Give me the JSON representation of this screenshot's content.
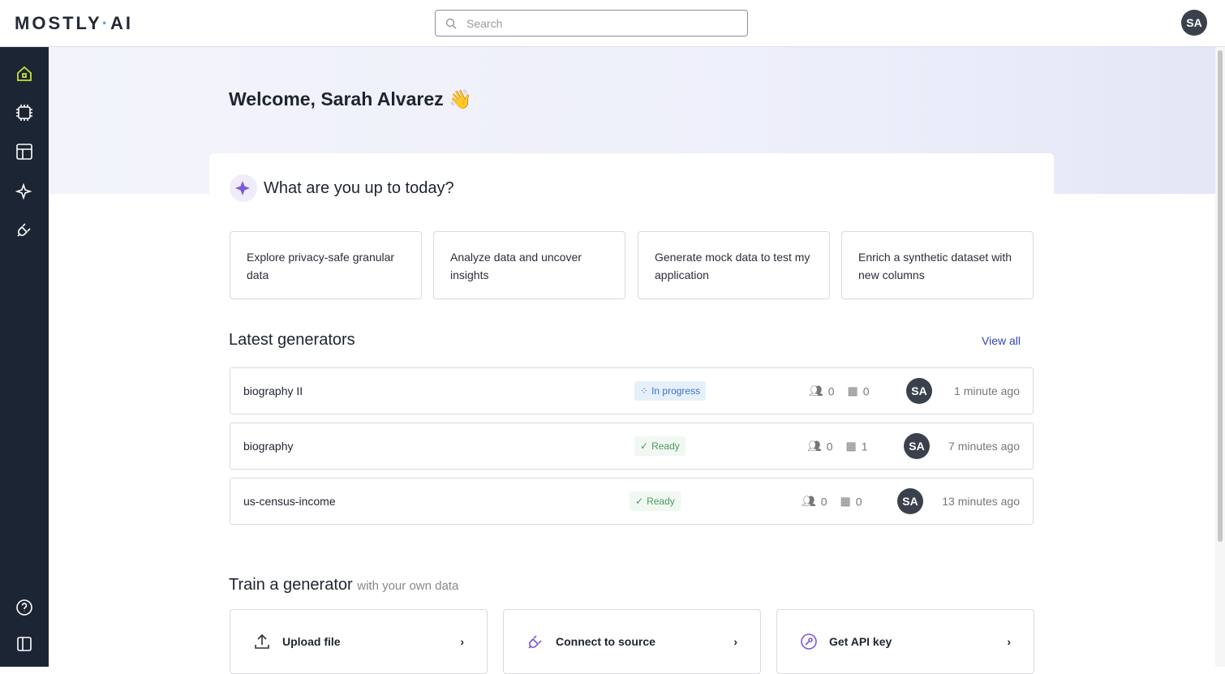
{
  "header": {
    "logo": "MOSTLY·AI",
    "search_placeholder": "Search",
    "user_initials": "SA"
  },
  "sidebar": {
    "items": [
      "home",
      "generators",
      "datasets",
      "assistant",
      "connectors"
    ],
    "bottom": [
      "help",
      "collapse"
    ],
    "active_color": "#c6e23a"
  },
  "welcome": "Welcome, Sarah Alvarez 👋",
  "prompt": {
    "title": "What are you up to today?",
    "cards": [
      "Explore privacy-safe granular data",
      "Analyze data and uncover insights",
      "Generate mock data to test my application",
      "Enrich a synthetic dataset with new columns"
    ]
  },
  "latest": {
    "title": "Latest generators",
    "view_all": "View all",
    "rows": [
      {
        "name": "biography II",
        "status": "In progress",
        "users": "0",
        "tables": "0",
        "owner": "SA",
        "time": "1 minute ago"
      },
      {
        "name": "biography",
        "status": "Ready",
        "users": "0",
        "tables": "1",
        "owner": "SA",
        "time": "7 minutes ago"
      },
      {
        "name": "us-census-income",
        "status": "Ready",
        "users": "0",
        "tables": "0",
        "owner": "SA",
        "time": "13 minutes ago"
      }
    ]
  },
  "train": {
    "title": "Train a generator",
    "subtitle": "with your own data",
    "actions": [
      "Upload file",
      "Connect to source",
      "Get API key"
    ]
  }
}
